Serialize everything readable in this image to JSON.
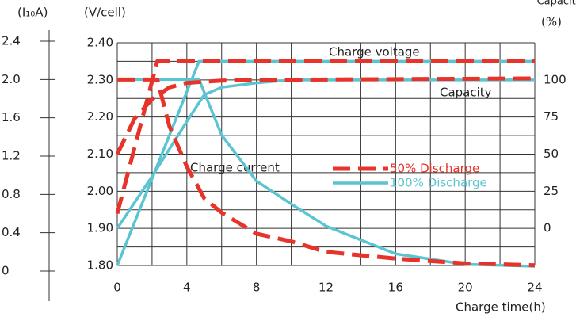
{
  "chart_data": {
    "type": "line",
    "axis_labels": {
      "y3": "(I₁₀A)",
      "y": "(V/cell)",
      "y2": "Capacity",
      "y2_unit": "(%)",
      "x": "Charge time(h)"
    },
    "annotations": [
      "Charge voltage",
      "Capacity",
      "Charge current"
    ],
    "xlim": [
      0,
      24
    ],
    "xticks": [
      0,
      4,
      8,
      12,
      16,
      20,
      24
    ],
    "x_grid": [
      0,
      2,
      4,
      6,
      8,
      10,
      12,
      14,
      16,
      18,
      20,
      22,
      24
    ],
    "ylim": [
      1.8,
      2.4
    ],
    "yticks": [
      {
        "value": 1.8,
        "label": "1.80"
      },
      {
        "value": 1.9,
        "label": "1.90"
      },
      {
        "value": 2.0,
        "label": "2.00"
      },
      {
        "value": 2.1,
        "label": "2.10"
      },
      {
        "value": 2.2,
        "label": "2.20"
      },
      {
        "value": 2.3,
        "label": "2.30"
      },
      {
        "value": 2.4,
        "label": "2.40"
      }
    ],
    "y_grid": [
      1.8,
      1.85,
      1.9,
      1.95,
      2.0,
      2.05,
      2.1,
      2.15,
      2.2,
      2.25,
      2.3,
      2.35,
      2.4
    ],
    "y2lim": [
      -25,
      125
    ],
    "y2ticks": [
      0,
      25,
      50,
      75,
      100
    ],
    "y3lim": [
      0,
      2.4
    ],
    "y3ticks": [
      0,
      0.4,
      0.8,
      1.2,
      1.6,
      {
        "value": 2.0,
        "label": "2.0"
      },
      2.4
    ],
    "grid": true,
    "series": [
      {
        "name": "50% Discharge",
        "color": "#e8332a",
        "dashed": true,
        "lines": [
          {
            "axis": "y",
            "x": [
              0,
              2.3,
              24
            ],
            "values": [
              1.94,
              2.35,
              2.35
            ]
          },
          {
            "axis": "y2",
            "x": [
              0,
              1,
              2,
              3,
              4,
              6,
              8,
              24
            ],
            "values": [
              50,
              74,
              87,
              95,
              98,
              99.5,
              100,
              101
            ]
          },
          {
            "axis": "y3",
            "x": [
              0,
              2.3,
              3,
              4,
              5,
              6,
              8,
              10,
              12,
              16,
              20,
              24
            ],
            "values": [
              2.0,
              2.0,
              1.51,
              1.09,
              0.76,
              0.61,
              0.39,
              0.31,
              0.2,
              0.13,
              0.08,
              0.06
            ]
          }
        ]
      },
      {
        "name": "100% Discharge",
        "color": "#5bc4d1",
        "dashed": false,
        "lines": [
          {
            "axis": "y",
            "x": [
              0,
              4.7,
              24
            ],
            "values": [
              1.8,
              2.35,
              2.35
            ]
          },
          {
            "axis": "y2",
            "x": [
              0,
              2,
              4,
              5,
              6,
              8,
              10,
              24
            ],
            "values": [
              0,
              35,
              72,
              90,
              95,
              98,
              100,
              100
            ]
          },
          {
            "axis": "y3",
            "x": [
              0,
              4.7,
              6,
              8,
              10,
              12,
              16,
              20,
              24
            ],
            "values": [
              2.0,
              2.0,
              1.42,
              0.94,
              0.7,
              0.47,
              0.18,
              0.07,
              0.05
            ]
          }
        ]
      }
    ]
  }
}
